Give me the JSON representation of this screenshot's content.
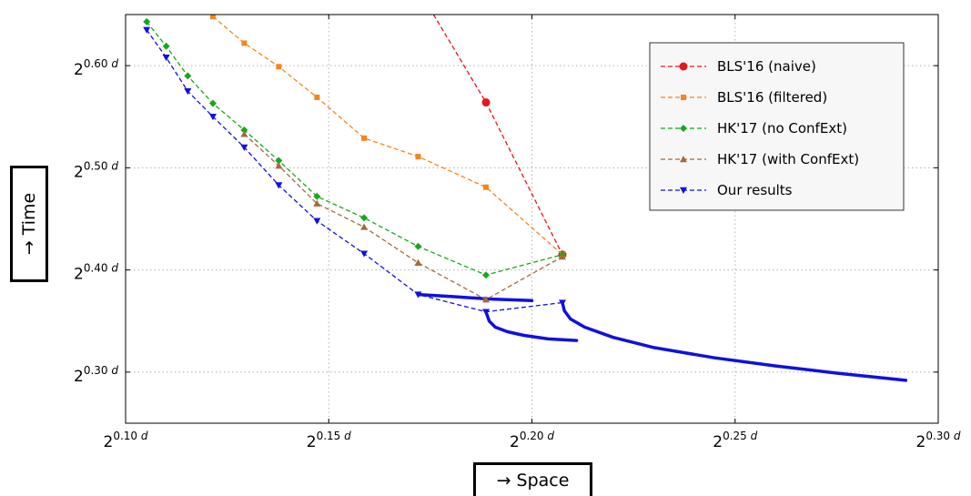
{
  "chart_data": {
    "type": "line",
    "xlabel": "→ Space",
    "ylabel": "→ Time",
    "xlim": [
      0.1,
      0.3
    ],
    "ylim": [
      0.25,
      0.65
    ],
    "grid": true,
    "legend_position": "top-right",
    "x_ticks": [
      {
        "base": "2",
        "exp": "0.10",
        "var": "d"
      },
      {
        "base": "2",
        "exp": "0.15",
        "var": "d"
      },
      {
        "base": "2",
        "exp": "0.20",
        "var": "d"
      },
      {
        "base": "2",
        "exp": "0.25",
        "var": "d"
      },
      {
        "base": "2",
        "exp": "0.30",
        "var": "d"
      }
    ],
    "y_ticks": [
      {
        "base": "2",
        "exp": "0.30",
        "var": "d"
      },
      {
        "base": "2",
        "exp": "0.40",
        "var": "d"
      },
      {
        "base": "2",
        "exp": "0.50",
        "var": "d"
      },
      {
        "base": "2",
        "exp": "0.60",
        "var": "d"
      }
    ],
    "series": [
      {
        "name": "BLS'16 (naive)",
        "color": "#e8151b",
        "marker": "circle",
        "x": [
          0.1758,
          0.1887,
          0.2075
        ],
        "y": [
          0.65,
          0.564,
          0.415
        ]
      },
      {
        "name": "BLS'16 (filtered)",
        "color": "#f7841c",
        "marker": "square",
        "x": [
          0.1215,
          0.1292,
          0.1377,
          0.1471,
          0.1587,
          0.172,
          0.1887,
          0.2075
        ],
        "y": [
          0.648,
          0.622,
          0.599,
          0.569,
          0.529,
          0.511,
          0.481,
          0.415
        ]
      },
      {
        "name": "HK'17 (no ConfExt)",
        "color": "#17a81a",
        "marker": "diamond",
        "x": [
          0.1052,
          0.11,
          0.1153,
          0.1215,
          0.1292,
          0.1377,
          0.1471,
          0.1587,
          0.172,
          0.1887,
          0.2075
        ],
        "y": [
          0.643,
          0.619,
          0.59,
          0.563,
          0.537,
          0.507,
          0.472,
          0.451,
          0.423,
          0.395,
          0.415
        ]
      },
      {
        "name": "HK'17 (with ConfExt)",
        "color": "#a46a3a",
        "marker": "triangle-up",
        "x": [
          0.1292,
          0.1377,
          0.1471,
          0.1587,
          0.172,
          0.1887,
          0.2075
        ],
        "y": [
          0.533,
          0.502,
          0.465,
          0.442,
          0.407,
          0.371,
          0.413
        ]
      },
      {
        "name": "Our results",
        "color": "#1010e0",
        "marker": "triangle-down",
        "x": [
          0.1052,
          0.11,
          0.1153,
          0.1215,
          0.1292,
          0.1377,
          0.1471,
          0.1587,
          0.172,
          0.1887,
          0.2075
        ],
        "y": [
          0.635,
          0.608,
          0.575,
          0.55,
          0.52,
          0.483,
          0.448,
          0.416,
          0.376,
          0.359,
          0.368
        ]
      }
    ],
    "curves": [
      {
        "color": "#1010e0",
        "x": [
          0.172,
          0.18,
          0.19,
          0.2
        ],
        "y": [
          0.376,
          0.374,
          0.3715,
          0.37
        ]
      },
      {
        "color": "#1010e0",
        "x": [
          0.1887,
          0.1895,
          0.191,
          0.194,
          0.198,
          0.204,
          0.211
        ],
        "y": [
          0.359,
          0.35,
          0.344,
          0.3395,
          0.336,
          0.3325,
          0.331
        ]
      },
      {
        "color": "#1010e0",
        "x": [
          0.2075,
          0.208,
          0.2095,
          0.213,
          0.22,
          0.23,
          0.245,
          0.26,
          0.275,
          0.292
        ],
        "y": [
          0.368,
          0.36,
          0.352,
          0.344,
          0.334,
          0.324,
          0.314,
          0.306,
          0.299,
          0.292
        ]
      }
    ]
  }
}
